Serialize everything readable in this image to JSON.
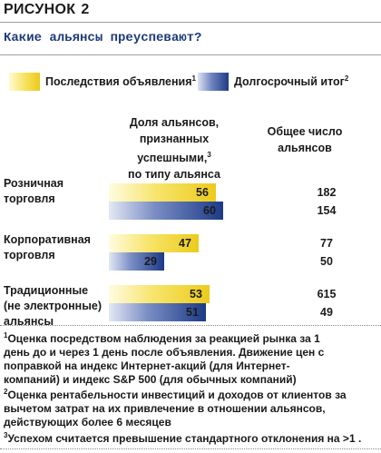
{
  "figure": {
    "label": "РИСУНОК",
    "number": "2"
  },
  "headline": "Какие альянсы преуспевают?",
  "legend": [
    {
      "label": "Последствия объявления",
      "note": "1",
      "color": "#eccb1c"
    },
    {
      "label": "Долгосрочный итог",
      "note": "2",
      "color": "#1f3b84"
    }
  ],
  "column_headers": {
    "share_lines": [
      "Доля альянсов,",
      "признанных успешными,",
      "по типу альянса"
    ],
    "share_note": "3",
    "total_lines": [
      "Общее число",
      "альянсов"
    ]
  },
  "chart_data": {
    "type": "bar",
    "orientation": "horizontal",
    "categories": [
      [
        "Розничная",
        "торговля"
      ],
      [
        "Корпоративная",
        "торговля"
      ],
      [
        "Традиционные",
        "(не электронные)",
        "альянсы"
      ]
    ],
    "series": [
      {
        "name": "Последствия объявления",
        "values": [
          56,
          47,
          53
        ]
      },
      {
        "name": "Долгосрочный итог",
        "values": [
          60,
          29,
          51
        ]
      }
    ],
    "totals": [
      [
        "182",
        "154"
      ],
      [
        "77",
        "50"
      ],
      [
        "615",
        "49"
      ]
    ],
    "xlim": [
      0,
      60
    ]
  },
  "footnotes": [
    {
      "mark": "1",
      "lines": [
        "Оценка посредством наблюдения за реакцией рынка за 1",
        "день до и через 1 день после объявления. Движение цен с",
        "поправкой на индекс Интернет-акций (для Интернет-",
        "компаний) и индекс S&P 500 (для обычных компаний)"
      ]
    },
    {
      "mark": "2",
      "lines": [
        "Оценка рентабельности инвестиций и доходов от клиентов за",
        "вычетом затрат на их привлечение в отношении альянсов,",
        "действующих более 6 месяцев"
      ]
    },
    {
      "mark": "3",
      "lines": [
        "Успехом считается превышение стандартного отклонения на >1 ."
      ]
    }
  ]
}
